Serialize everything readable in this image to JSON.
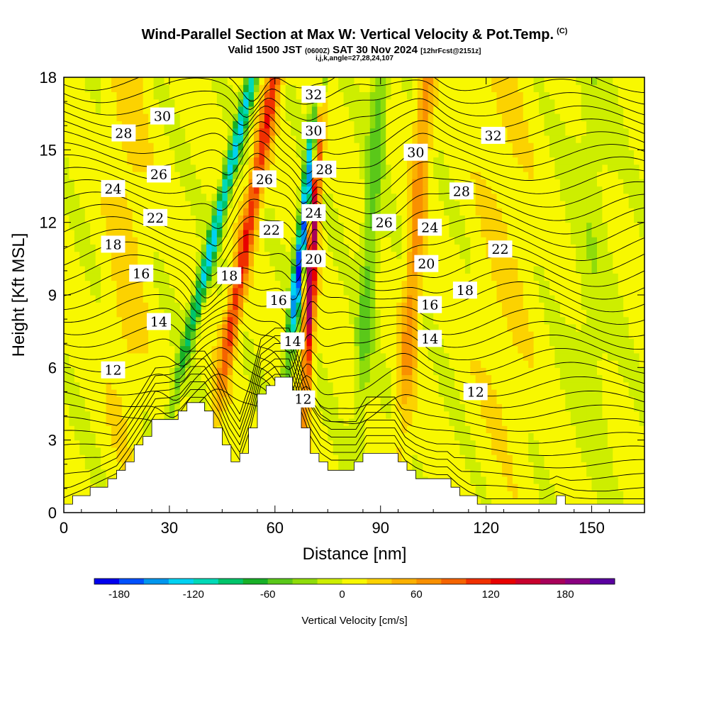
{
  "title": {
    "main": "Wind-Parallel Section at Max W: Vertical Velocity & Pot.Temp.",
    "mark": "(C)",
    "valid_prefix": "Valid 1500 JST",
    "valid_utc": "(0600Z)",
    "valid_date": "SAT 30 Nov 2024",
    "forecast": "[12hrFcst@2151z]",
    "grid_info": "i,j,k,angle=27,28,24,107"
  },
  "chart_data": {
    "type": "heatmap",
    "xlabel": "Distance [nm]",
    "ylabel": "Height [Kft MSL]",
    "xlim": [
      0,
      165
    ],
    "ylim": [
      0,
      18
    ],
    "xticks": [
      0,
      30,
      60,
      90,
      120,
      150
    ],
    "yticks": [
      0,
      3,
      6,
      9,
      12,
      15,
      18
    ],
    "colorbar": {
      "label": "Vertical Velocity [cm/s]",
      "ticks": [
        -180,
        -120,
        -60,
        0,
        60,
        120,
        180
      ],
      "min": -200,
      "max": 220,
      "step": 20,
      "colors": [
        "#0000ee",
        "#0050ff",
        "#0096ee",
        "#00d2f2",
        "#00d9b7",
        "#00c46a",
        "#18b027",
        "#5ac819",
        "#8fdc0a",
        "#cdee00",
        "#f8f800",
        "#fcd200",
        "#fbb100",
        "#f99000",
        "#f56400",
        "#f03000",
        "#e80000",
        "#c8002d",
        "#a8005a",
        "#8a0080",
        "#5a00a0"
      ]
    },
    "terrain_kft": [
      [
        0,
        0.35
      ],
      [
        5,
        0.65
      ],
      [
        10,
        1.0
      ],
      [
        15,
        1.35
      ],
      [
        18,
        1.95
      ],
      [
        22,
        2.85
      ],
      [
        26,
        3.8
      ],
      [
        30,
        3.85
      ],
      [
        33,
        4.0
      ],
      [
        36,
        4.5
      ],
      [
        40,
        4.5
      ],
      [
        44,
        3.6
      ],
      [
        47,
        2.6
      ],
      [
        50,
        1.9
      ],
      [
        53,
        3.2
      ],
      [
        56,
        5.0
      ],
      [
        60,
        5.45
      ],
      [
        64,
        5.45
      ],
      [
        67,
        4.1
      ],
      [
        70,
        2.9
      ],
      [
        73,
        2.2
      ],
      [
        76,
        1.9
      ],
      [
        80,
        1.9
      ],
      [
        83,
        1.9
      ],
      [
        86,
        2.6
      ],
      [
        90,
        2.6
      ],
      [
        94,
        2.6
      ],
      [
        97,
        1.9
      ],
      [
        100,
        1.6
      ],
      [
        103,
        1.4
      ],
      [
        106,
        1.3
      ],
      [
        109,
        1.3
      ],
      [
        112,
        0.9
      ],
      [
        115,
        0.6
      ],
      [
        120,
        0.3
      ],
      [
        128,
        0.3
      ],
      [
        136,
        0.3
      ],
      [
        140,
        0.6
      ],
      [
        145,
        0.35
      ],
      [
        150,
        0.3
      ],
      [
        155,
        0.3
      ],
      [
        160,
        0.3
      ],
      [
        165,
        0.3
      ]
    ],
    "updrafts": [
      {
        "x": 33.5,
        "slope": 0.42,
        "width": 1.8,
        "amp": -130
      },
      {
        "x": 45.5,
        "slope": 0.3,
        "width": 2.2,
        "amp": 110
      },
      {
        "x": 63.5,
        "slope": 0.2,
        "width": 1.6,
        "amp": -190
      },
      {
        "x": 69.0,
        "slope": 0.08,
        "width": 1.5,
        "amp": 175
      },
      {
        "x": 85.0,
        "slope": 0.1,
        "width": 2.4,
        "amp": -55
      },
      {
        "x": 97.5,
        "slope": 0.12,
        "width": 2.4,
        "amp": 65
      },
      {
        "x": 18.0,
        "slope": 0.0,
        "width": 5.5,
        "amp": 22
      },
      {
        "x": 125.0,
        "slope": 0.0,
        "width": 8.0,
        "amp": 14
      },
      {
        "x": 150.0,
        "slope": 0.0,
        "width": 6.0,
        "amp": -18
      }
    ],
    "theta_labels": [
      {
        "x": 17,
        "y": 15.7,
        "text": "28"
      },
      {
        "x": 14,
        "y": 13.4,
        "text": "24"
      },
      {
        "x": 26,
        "y": 12.2,
        "text": "22"
      },
      {
        "x": 14,
        "y": 11.1,
        "text": "18"
      },
      {
        "x": 22,
        "y": 9.9,
        "text": "16"
      },
      {
        "x": 14,
        "y": 5.9,
        "text": "12"
      },
      {
        "x": 28,
        "y": 16.4,
        "text": "30"
      },
      {
        "x": 27,
        "y": 14.0,
        "text": "26"
      },
      {
        "x": 27,
        "y": 7.9,
        "text": "14"
      },
      {
        "x": 47,
        "y": 9.8,
        "text": "18"
      },
      {
        "x": 57,
        "y": 13.8,
        "text": "26"
      },
      {
        "x": 59,
        "y": 11.7,
        "text": "22"
      },
      {
        "x": 61,
        "y": 8.8,
        "text": "16"
      },
      {
        "x": 65,
        "y": 7.1,
        "text": "14"
      },
      {
        "x": 68,
        "y": 4.7,
        "text": "12"
      },
      {
        "x": 71,
        "y": 17.3,
        "text": "32"
      },
      {
        "x": 71,
        "y": 15.8,
        "text": "30"
      },
      {
        "x": 74,
        "y": 14.2,
        "text": "28"
      },
      {
        "x": 71,
        "y": 12.4,
        "text": "24"
      },
      {
        "x": 71,
        "y": 10.5,
        "text": "20"
      },
      {
        "x": 91,
        "y": 12.0,
        "text": "26"
      },
      {
        "x": 100,
        "y": 14.9,
        "text": "30"
      },
      {
        "x": 104,
        "y": 11.8,
        "text": "24"
      },
      {
        "x": 103,
        "y": 10.3,
        "text": "20"
      },
      {
        "x": 104,
        "y": 8.6,
        "text": "16"
      },
      {
        "x": 104,
        "y": 7.2,
        "text": "14"
      },
      {
        "x": 113,
        "y": 13.3,
        "text": "28"
      },
      {
        "x": 122,
        "y": 15.6,
        "text": "32"
      },
      {
        "x": 124,
        "y": 10.9,
        "text": "22"
      },
      {
        "x": 114,
        "y": 9.2,
        "text": "18"
      },
      {
        "x": 117,
        "y": 5.0,
        "text": "12"
      }
    ]
  }
}
